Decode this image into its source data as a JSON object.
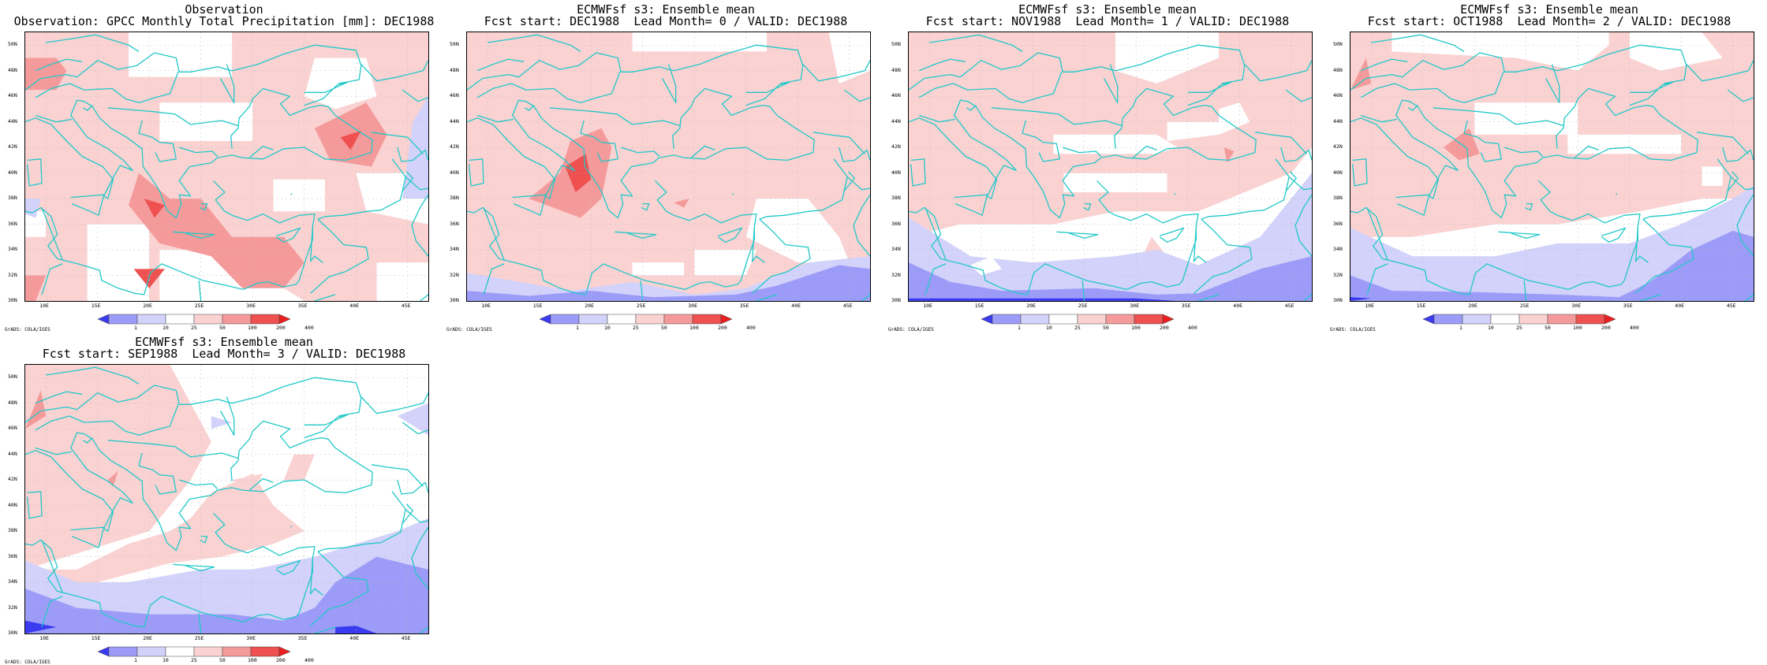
{
  "panels": [
    {
      "title_line1": "Observation",
      "title_line2": "Observation: GPCC Monthly Total Precipitation [mm]: DEC1988",
      "pattern": "obs"
    },
    {
      "title_line1": "ECMWFsf s3: Ensemble mean",
      "title_line2": "Fcst start: DEC1988  Lead Month= 0 / VALID: DEC1988",
      "pattern": "lead0"
    },
    {
      "title_line1": "ECMWFsf s3: Ensemble mean",
      "title_line2": "Fcst start: NOV1988  Lead Month= 1 / VALID: DEC1988",
      "pattern": "lead1"
    },
    {
      "title_line1": "ECMWFsf s3: Ensemble mean",
      "title_line2": "Fcst start: OCT1988  Lead Month= 2 / VALID: DEC1988",
      "pattern": "lead2"
    },
    {
      "title_line1": "ECMWFsf s3: Ensemble mean",
      "title_line2": "Fcst start: SEP1988  Lead Month= 3 / VALID: DEC1988",
      "pattern": "lead3"
    }
  ],
  "map": {
    "lat_labels": [
      "50N",
      "48N",
      "46N",
      "44N",
      "42N",
      "40N",
      "38N",
      "36N",
      "34N",
      "32N",
      "30N"
    ],
    "lon_labels": [
      "10E",
      "15E",
      "20E",
      "25E",
      "30E",
      "35E",
      "40E",
      "45E"
    ],
    "lon_range": [
      8,
      47
    ],
    "lat_range": [
      30,
      51
    ],
    "coast_color": "#22c8c8",
    "grid_color": "#bbbbbb"
  },
  "colorbar": {
    "labels": [
      "1",
      "10",
      "25",
      "50",
      "100",
      "200",
      "400"
    ],
    "colors": [
      "#3a3af0",
      "#9c9cf8",
      "#d2d2fa",
      "#ffffff",
      "#fad2d2",
      "#f59a9a",
      "#ef5050",
      "#ea2020"
    ]
  },
  "credit": "GrADS: COLA/IGES"
}
